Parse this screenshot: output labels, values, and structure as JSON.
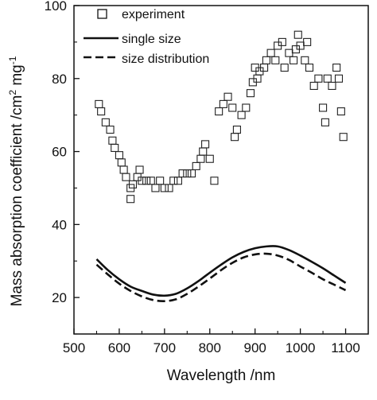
{
  "chart_data": {
    "type": "scatter",
    "xlabel": "Wavelength /nm",
    "ylabel": "Mass absorption coefficient /cm",
    "ylabel_unit": "2",
    "ylabel_tail": " mg",
    "ylabel_unit2": "-1",
    "xlim": [
      500,
      1150
    ],
    "ylim": [
      10,
      100
    ],
    "xticks": [
      500,
      600,
      700,
      800,
      900,
      1000,
      1100
    ],
    "yticks": [
      20,
      40,
      60,
      80,
      100
    ],
    "legend_position": "top-left",
    "legend": [
      {
        "label": "experiment",
        "style": "open-square"
      },
      {
        "label": "single size",
        "style": "solid-line"
      },
      {
        "label": "size distribution",
        "style": "dashed-line"
      }
    ],
    "series": [
      {
        "name": "experiment",
        "marker": "open-square",
        "points": [
          [
            555,
            73
          ],
          [
            560,
            71
          ],
          [
            570,
            68
          ],
          [
            580,
            66
          ],
          [
            585,
            63
          ],
          [
            590,
            61
          ],
          [
            600,
            59
          ],
          [
            605,
            57
          ],
          [
            610,
            55
          ],
          [
            615,
            53
          ],
          [
            625,
            50
          ],
          [
            625,
            47
          ],
          [
            630,
            51
          ],
          [
            640,
            53
          ],
          [
            645,
            55
          ],
          [
            650,
            52
          ],
          [
            660,
            52
          ],
          [
            670,
            52
          ],
          [
            680,
            50
          ],
          [
            690,
            52
          ],
          [
            700,
            50
          ],
          [
            710,
            50
          ],
          [
            720,
            52
          ],
          [
            730,
            52
          ],
          [
            740,
            54
          ],
          [
            750,
            54
          ],
          [
            760,
            54
          ],
          [
            770,
            56
          ],
          [
            780,
            58
          ],
          [
            785,
            60
          ],
          [
            790,
            62
          ],
          [
            800,
            58
          ],
          [
            810,
            52
          ],
          [
            820,
            71
          ],
          [
            830,
            73
          ],
          [
            840,
            75
          ],
          [
            850,
            72
          ],
          [
            855,
            64
          ],
          [
            860,
            66
          ],
          [
            870,
            70
          ],
          [
            880,
            72
          ],
          [
            890,
            76
          ],
          [
            895,
            79
          ],
          [
            900,
            83
          ],
          [
            905,
            80
          ],
          [
            910,
            82
          ],
          [
            920,
            83
          ],
          [
            925,
            85
          ],
          [
            935,
            87
          ],
          [
            945,
            85
          ],
          [
            950,
            89
          ],
          [
            960,
            90
          ],
          [
            965,
            83
          ],
          [
            975,
            87
          ],
          [
            985,
            85
          ],
          [
            990,
            88
          ],
          [
            995,
            92
          ],
          [
            1000,
            89
          ],
          [
            1010,
            85
          ],
          [
            1015,
            90
          ],
          [
            1020,
            83
          ],
          [
            1030,
            78
          ],
          [
            1040,
            80
          ],
          [
            1050,
            72
          ],
          [
            1055,
            68
          ],
          [
            1060,
            80
          ],
          [
            1070,
            78
          ],
          [
            1080,
            83
          ],
          [
            1085,
            80
          ],
          [
            1090,
            71
          ],
          [
            1095,
            64
          ]
        ]
      },
      {
        "name": "single size",
        "style": "solid",
        "points": [
          [
            550,
            30.5
          ],
          [
            575,
            27.5
          ],
          [
            600,
            25
          ],
          [
            625,
            23
          ],
          [
            650,
            21.8
          ],
          [
            675,
            20.8
          ],
          [
            700,
            20.5
          ],
          [
            725,
            21
          ],
          [
            750,
            22.5
          ],
          [
            775,
            24.5
          ],
          [
            800,
            26.8
          ],
          [
            825,
            29
          ],
          [
            850,
            31
          ],
          [
            875,
            32.5
          ],
          [
            900,
            33.5
          ],
          [
            925,
            34
          ],
          [
            950,
            34
          ],
          [
            975,
            33
          ],
          [
            1000,
            31.5
          ],
          [
            1025,
            29.8
          ],
          [
            1050,
            28
          ],
          [
            1075,
            26
          ],
          [
            1100,
            24
          ]
        ]
      },
      {
        "name": "size distribution",
        "style": "dashed",
        "points": [
          [
            550,
            29
          ],
          [
            575,
            26.3
          ],
          [
            600,
            23.8
          ],
          [
            625,
            21.8
          ],
          [
            650,
            20.3
          ],
          [
            675,
            19.3
          ],
          [
            700,
            19
          ],
          [
            725,
            19.5
          ],
          [
            750,
            21
          ],
          [
            775,
            23
          ],
          [
            800,
            25.2
          ],
          [
            825,
            27.5
          ],
          [
            850,
            29.5
          ],
          [
            875,
            31
          ],
          [
            900,
            31.8
          ],
          [
            925,
            32
          ],
          [
            950,
            31.5
          ],
          [
            975,
            30.3
          ],
          [
            1000,
            28.5
          ],
          [
            1025,
            26.8
          ],
          [
            1050,
            25
          ],
          [
            1075,
            23.5
          ],
          [
            1100,
            22
          ]
        ]
      }
    ]
  }
}
